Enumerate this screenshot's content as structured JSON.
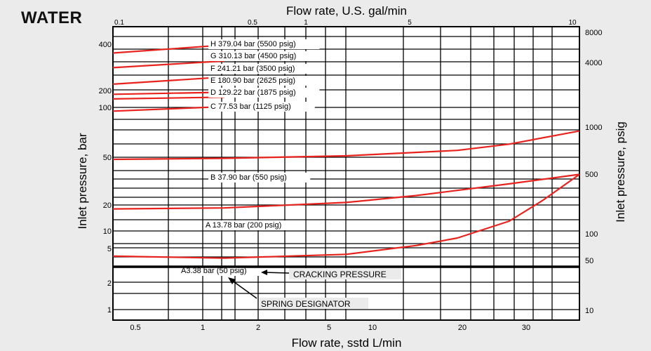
{
  "page_title": "WATER",
  "chart_data": {
    "type": "line",
    "title": "",
    "x_top_label": "Flow rate, U.S. gal/min",
    "x_bottom_label": "Flow rate, sstd L/min",
    "y_left_label": "Inlet pressure, bar",
    "y_right_label": "Inlet pressure, psig",
    "x_top_ticks": [
      "0.1",
      "0.5",
      "1",
      "5",
      "10"
    ],
    "x_top_range": [
      0.1,
      10
    ],
    "x_bottom_ticks": [
      "0.5",
      "1",
      "2",
      "5",
      "10",
      "20",
      "30"
    ],
    "y_left_ticks": [
      "1",
      "2",
      "5",
      "10",
      "20",
      "50",
      "100",
      "200",
      "400"
    ],
    "y_right_ticks": [
      "10",
      "50",
      "100",
      "500",
      "1000",
      "4000",
      "8000"
    ],
    "grid": true,
    "series": [
      {
        "name": "H 379.04 bar (5500 psig)",
        "x": [
          0.1,
          0.3
        ],
        "y": [
          350,
          395
        ]
      },
      {
        "name": "G 310.13 bar (4500 psig)",
        "x": [
          0.1,
          0.3
        ],
        "y": [
          280,
          310
        ]
      },
      {
        "name": "F 241.21 bar (3500 psig)",
        "x": [
          0.1,
          0.3
        ],
        "y": [
          218,
          243
        ]
      },
      {
        "name": "E 180.90 bar (2625 psig)",
        "x": [
          0.1,
          0.3
        ],
        "y": [
          168,
          182
        ]
      },
      {
        "name": "D 129.22 bar (1875 psig)",
        "x": [
          0.1,
          0.3
        ],
        "y": [
          140,
          150
        ]
      },
      {
        "name": "C 77.53 bar (1125 psig)",
        "x": [
          0.1,
          0.3
        ],
        "y": [
          95,
          103
        ]
      },
      {
        "name": "B 37.90 bar (550 psig)",
        "x": [
          0.1,
          0.3,
          1,
          3,
          5,
          10
        ],
        "y": [
          48,
          49,
          51,
          55,
          60,
          72
        ]
      },
      {
        "name": "A 13.78 bar (200 psig)",
        "x": [
          0.1,
          0.3,
          1,
          2,
          5,
          10
        ],
        "y": [
          18,
          18.5,
          21,
          24,
          30,
          36
        ]
      },
      {
        "name": "A3.38 bar (50 psig)",
        "x": [
          0.1,
          0.3,
          1,
          2,
          3,
          5,
          7,
          10
        ],
        "y": [
          4,
          3.8,
          4.2,
          5.5,
          7.5,
          13,
          22,
          36
        ]
      }
    ],
    "annotations": [
      "CRACKING PRESSURE",
      "SPRING DESIGNATOR"
    ]
  }
}
